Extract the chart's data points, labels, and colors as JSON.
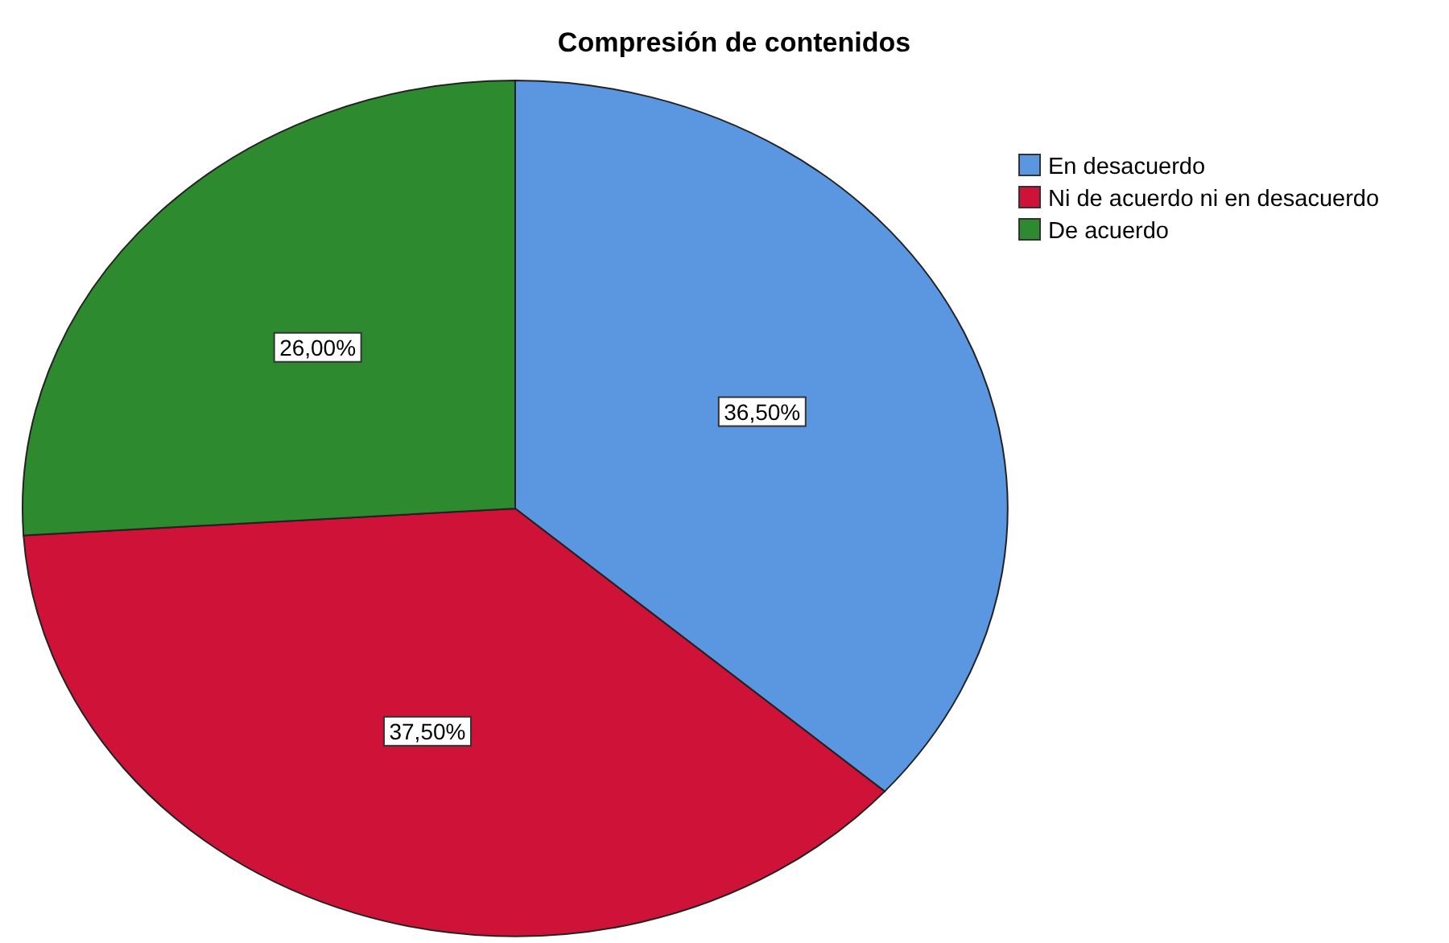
{
  "chart_data": {
    "type": "pie",
    "title": "Compresión de contenidos",
    "categories": [
      "En desacuerdo",
      "Ni de acuerdo ni en desacuerdo",
      "De acuerdo"
    ],
    "values": [
      36.5,
      37.5,
      26
    ],
    "colors": [
      "#5b97e1",
      "#cf1238",
      "#2e8a2e"
    ],
    "value_labels": [
      "36,50%",
      "37,50%",
      "26,00%"
    ],
    "legend": "top right"
  }
}
